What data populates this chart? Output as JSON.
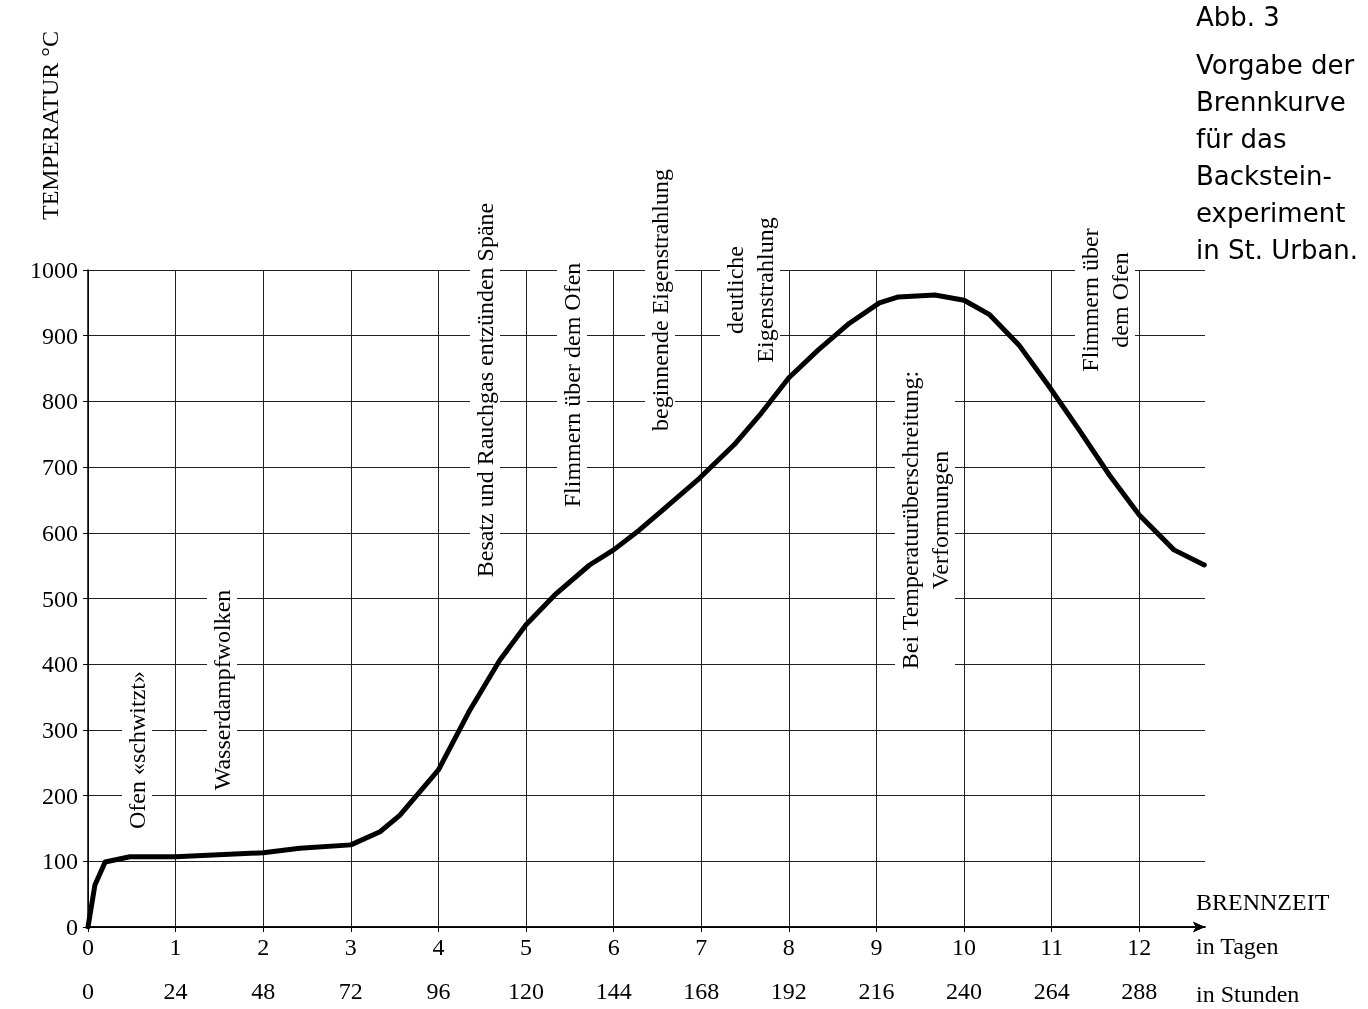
{
  "chart_data": {
    "type": "line",
    "title": "Abb. 3",
    "subtitle": "Vorgabe der\nBrennkurve\nfür das\nBackstein-\nexperiment\nin St. Urban.",
    "xlabel": "in Stunden",
    "x2label": "in Tagen",
    "ylabel": "TEMPERATUR °C",
    "annotations": [
      "BRENNZEIT",
      "Ofen «schwitzt»",
      "Wasserdampfwolken",
      "Besatz und Rauchgas entzünden Späne",
      "Flimmern über dem Ofen",
      "beginnende Eigenstrahlung",
      "deutliche\nEigenstrahlung",
      "Bei Temperaturüberschreitung:\nVerformungen",
      "Flimmern über\ndem Ofen"
    ],
    "x": [
      0,
      1.9,
      4.7,
      11.5,
      24,
      48,
      58,
      72,
      80,
      85.4,
      96,
      104.6,
      112.8,
      120,
      127.8,
      137.4,
      144,
      151,
      159,
      167.5,
      177,
      184,
      192,
      200,
      208.6,
      216.8,
      222,
      232,
      240,
      247,
      255,
      263,
      271.6,
      279.8,
      288,
      297.5,
      305.8
    ],
    "series": [
      {
        "color": "#000000",
        "values": [
          0,
          64,
          99,
          107,
          107,
          113,
          120,
          125,
          145,
          170,
          239,
          330,
          406,
          460,
          505,
          551,
          574,
          604,
          642,
          683,
          734,
          779,
          836,
          878,
          919,
          950,
          959,
          962,
          954,
          932,
          886,
          825,
          756,
          688,
          627,
          574,
          551
        ]
      }
    ],
    "xlim": [
      0,
      306
    ],
    "xticks": [
      0,
      24,
      48,
      72,
      96,
      120,
      144,
      168,
      192,
      216,
      240,
      264,
      288
    ],
    "x2lim": [
      0,
      12.75
    ],
    "x2ticks": [
      0,
      1,
      2,
      3,
      4,
      5,
      6,
      7,
      8,
      9,
      10,
      11,
      12
    ],
    "ylim": [
      0,
      1000
    ],
    "yticks": [
      0,
      100,
      200,
      300,
      400,
      500,
      600,
      700,
      800,
      900,
      1000
    ],
    "grid": true,
    "marker": "none",
    "line_style": "solid"
  }
}
